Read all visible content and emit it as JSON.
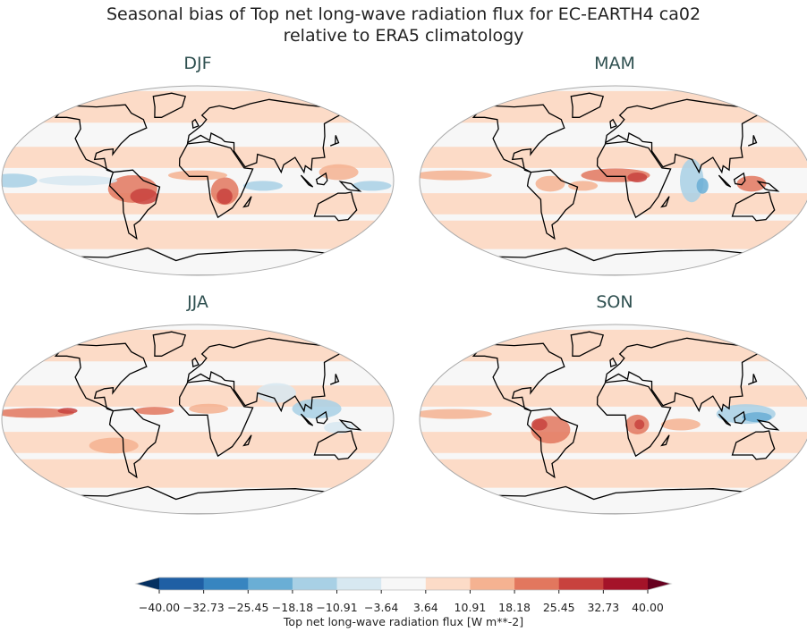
{
  "title_line1": "Seasonal bias of Top net long-wave radiation flux for EC-EARTH4 ca02",
  "title_line2": "relative to ERA5 climatology",
  "panels": [
    {
      "label": "DJF"
    },
    {
      "label": "MAM"
    },
    {
      "label": "JJA"
    },
    {
      "label": "SON"
    }
  ],
  "colorbar": {
    "label": "Top net long-wave radiation flux [W m**-2]",
    "extend": "both",
    "ticks": [
      "−40.00",
      "−32.73",
      "−25.45",
      "−18.18",
      "−10.91",
      "−3.64",
      "3.64",
      "10.91",
      "18.18",
      "25.45",
      "32.73",
      "40.00"
    ],
    "colors": [
      "#1f5fa4",
      "#3785c0",
      "#6aaed5",
      "#a8d0e5",
      "#d7e8f1",
      "#f7f7f7",
      "#fcdbc7",
      "#f5b291",
      "#e2775e",
      "#c8423e",
      "#a41329"
    ],
    "under_color": "#053061",
    "over_color": "#67001f"
  }
}
